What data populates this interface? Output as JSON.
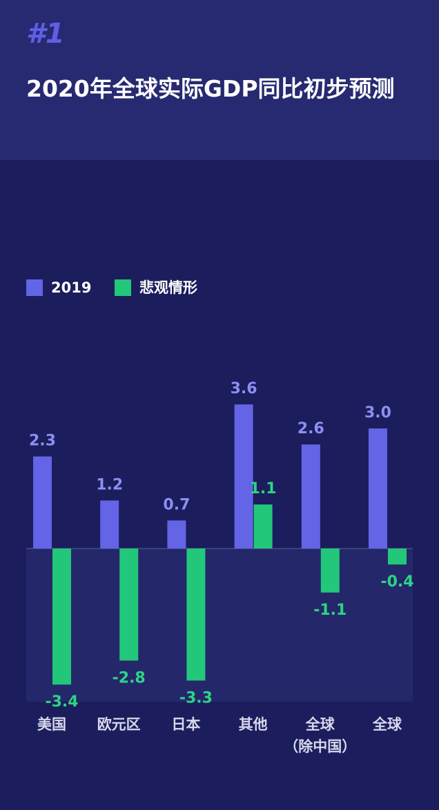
{
  "header": {
    "tag": "#1"
  },
  "chart_data": {
    "type": "bar",
    "title": "2020年全球实际GDP同比初步预测",
    "categories": [
      "美国",
      "欧元区",
      "日本",
      "其他",
      "全球\n（除中国）",
      "全球"
    ],
    "series": [
      {
        "name": "2019",
        "color": "#6464e6",
        "label_color": "#8e8ef2",
        "values": [
          2.3,
          1.2,
          0.7,
          3.6,
          2.6,
          3.0
        ],
        "value_labels": [
          "2.3",
          "1.2",
          "0.7",
          "3.6",
          "2.6",
          "3.0"
        ]
      },
      {
        "name": "悲观情形",
        "color": "#22c77a",
        "label_color": "#2bd585",
        "values": [
          -3.4,
          -2.8,
          -3.3,
          1.1,
          -1.1,
          -0.4
        ],
        "value_labels": [
          "-3.4",
          "-2.8",
          "-3.3",
          "1.1",
          "-1.1",
          "-0.4"
        ]
      }
    ]
  }
}
